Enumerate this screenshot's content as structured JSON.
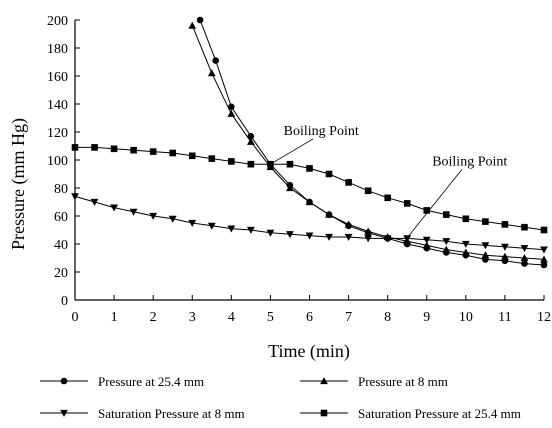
{
  "chart_data": {
    "type": "line",
    "title": "",
    "xlabel": "Time (min)",
    "ylabel": "Pressure (mm Hg)",
    "xlim": [
      0,
      12
    ],
    "ylim": [
      0,
      200
    ],
    "x_ticks": [
      "0",
      "1",
      "2",
      "3",
      "4",
      "5",
      "6",
      "7",
      "8",
      "9",
      "10",
      "11",
      "12"
    ],
    "y_ticks": [
      "0",
      "20",
      "40",
      "60",
      "80",
      "100",
      "120",
      "140",
      "160",
      "180",
      "200"
    ],
    "grid": false,
    "legend_position": "bottom",
    "series": [
      {
        "name": "Pressure at 25.4 mm",
        "marker": "circle",
        "line_style": "solid",
        "x": [
          3.2,
          3.6,
          4.0,
          4.5,
          5.0,
          5.5,
          6.0,
          6.5,
          7.0,
          7.5,
          8.0,
          8.5,
          9.0,
          9.5,
          10.0,
          10.5,
          11.0,
          11.5,
          12.0
        ],
        "y": [
          200,
          171,
          138,
          117,
          97,
          82,
          70,
          61,
          53,
          48,
          44,
          40,
          37,
          34,
          32,
          29,
          28,
          26,
          25
        ]
      },
      {
        "name": "Pressure at 8 mm",
        "marker": "triangle-up",
        "line_style": "solid",
        "x": [
          3.0,
          3.5,
          4.0,
          4.5,
          5.0,
          5.5,
          6.0,
          6.5,
          7.0,
          7.5,
          8.0,
          8.5,
          9.0,
          9.5,
          10.0,
          10.5,
          11.0,
          11.5,
          12.0
        ],
        "y": [
          196,
          162,
          133,
          113,
          95,
          80,
          70,
          61,
          54,
          49,
          45,
          42,
          39,
          36,
          34,
          32,
          31,
          30,
          29
        ]
      },
      {
        "name": "Saturation Pressure at 8 mm",
        "marker": "triangle-down",
        "line_style": "solid",
        "x": [
          0,
          0.5,
          1.0,
          1.5,
          2.0,
          2.5,
          3.0,
          3.5,
          4.0,
          4.5,
          5.0,
          5.5,
          6.0,
          6.5,
          7.0,
          7.5,
          8.0,
          8.5,
          9.0,
          9.5,
          10.0,
          10.5,
          11.0,
          11.5,
          12.0
        ],
        "y": [
          74,
          70,
          66,
          63,
          60,
          58,
          55,
          53,
          51,
          50,
          48,
          47,
          46,
          45,
          45,
          44,
          44,
          44,
          43,
          42,
          40,
          39,
          38,
          37,
          36
        ]
      },
      {
        "name": "Saturation Pressure at 25.4 mm",
        "marker": "square",
        "line_style": "solid",
        "x": [
          0,
          0.5,
          1.0,
          1.5,
          2.0,
          2.5,
          3.0,
          3.5,
          4.0,
          4.5,
          5.0,
          5.5,
          6.0,
          6.5,
          7.0,
          7.5,
          8.0,
          8.5,
          9.0,
          9.5,
          10.0,
          10.5,
          11.0,
          11.5,
          12.0
        ],
        "y": [
          109,
          109,
          108,
          107,
          106,
          105,
          103,
          101,
          99,
          97,
          97,
          97,
          94,
          90,
          84,
          78,
          73,
          69,
          64,
          61,
          58,
          56,
          54,
          52,
          50
        ]
      }
    ],
    "annotations": [
      {
        "text": "Boiling Point",
        "x": 5.0,
        "y": 97,
        "label_x": 6.3,
        "label_y": 118
      },
      {
        "text": "Boiling Point",
        "x": 8.4,
        "y": 41,
        "label_x": 10.1,
        "label_y": 96
      }
    ]
  }
}
